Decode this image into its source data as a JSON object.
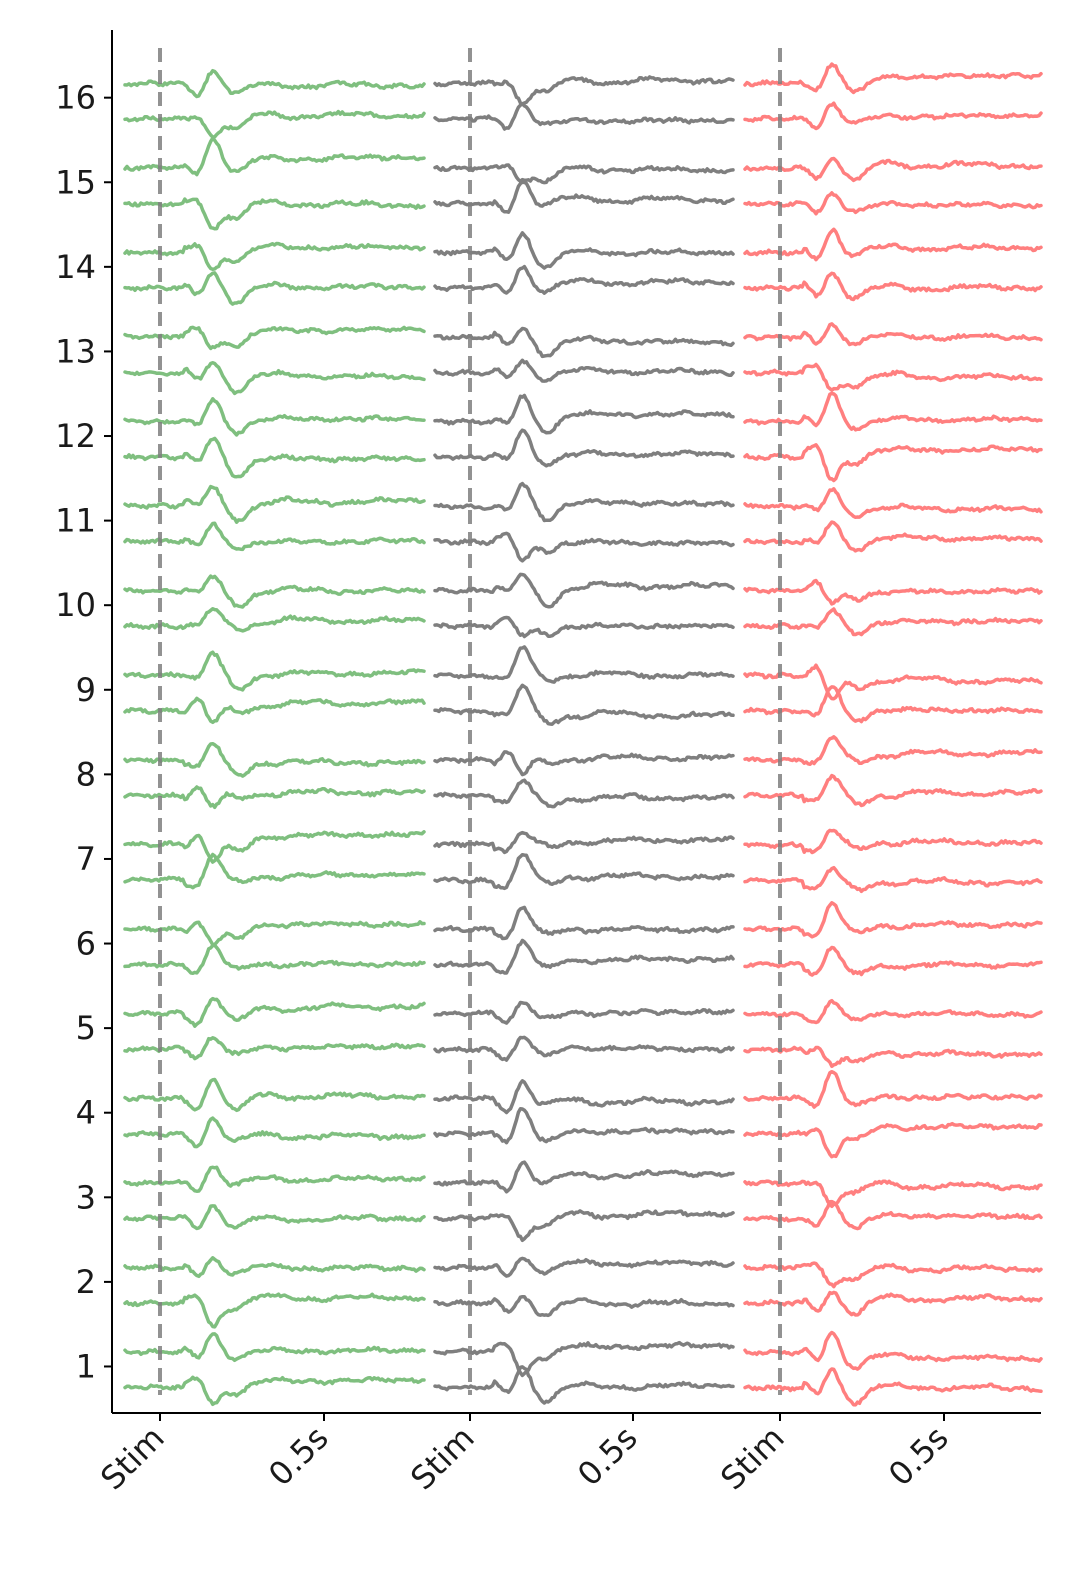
{
  "chart_data": {
    "type": "line",
    "title": "",
    "xlabel": "",
    "ylabel": "",
    "ylim": [
      0.45,
      16.8
    ],
    "yticks": [
      1,
      2,
      3,
      4,
      5,
      6,
      7,
      8,
      9,
      10,
      11,
      12,
      13,
      14,
      15,
      16
    ],
    "ytick_labels": [
      "1",
      "2",
      "3",
      "4",
      "5",
      "6",
      "7",
      "8",
      "9",
      "10",
      "11",
      "12",
      "13",
      "14",
      "15",
      "16"
    ],
    "grid": false,
    "legend": "none",
    "stim_line_color": "#808080",
    "panels": [
      {
        "color": "#7fbf7f",
        "xtick_labels": [
          "Stim",
          "0.5s"
        ]
      },
      {
        "color": "#7f7f7f",
        "xtick_labels": [
          "Stim",
          "0.5s"
        ]
      },
      {
        "color": "#ff7f7f",
        "xtick_labels": [
          "Stim",
          "0.5s"
        ]
      }
    ],
    "traces_per_channel": 2,
    "trace_offsets": [
      -0.25,
      0.17
    ],
    "x_window": [
      -0.1,
      0.8
    ]
  }
}
